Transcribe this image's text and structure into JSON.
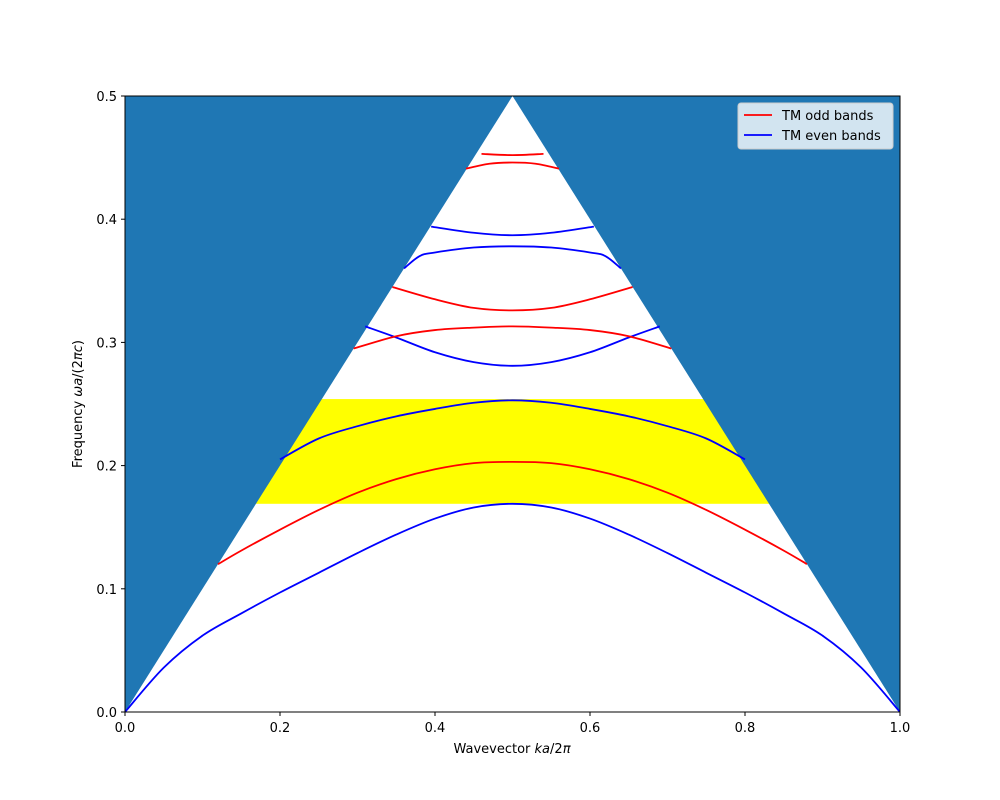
{
  "chart_data": {
    "type": "line",
    "title": "",
    "xlabel": "Wavevector $ka/2\\pi$",
    "ylabel": "Frequency $\\omega a/(2\\pi c)$",
    "xlabel_parts": [
      "Wavevector ",
      "ka",
      "/2",
      "π"
    ],
    "ylabel_parts": [
      "Frequency ",
      "ωa",
      "/(2",
      "πc",
      ")"
    ],
    "xlim": [
      0.0,
      1.0
    ],
    "ylim": [
      0.0,
      0.5
    ],
    "xticks": [
      "0.0",
      "0.2",
      "0.4",
      "0.6",
      "0.8",
      "1.0"
    ],
    "yticks": [
      "0.0",
      "0.1",
      "0.2",
      "0.3",
      "0.4",
      "0.5"
    ],
    "grid": false,
    "legend": {
      "placement": "top-right",
      "entries": [
        {
          "label": "TM odd bands",
          "color": "#ff0000"
        },
        {
          "label": "TM even bands",
          "color": "#0000ff"
        }
      ]
    },
    "colors": {
      "light_cone": "#1f77b4",
      "band_gap": "#ffff00",
      "odd": "#ff0000",
      "even": "#0000ff"
    },
    "light_cone": {
      "apex": [
        0.5,
        0.5
      ],
      "description": "filled region above |k| and |1-k| lines"
    },
    "band_gap": {
      "y_range": [
        0.169,
        0.254
      ]
    },
    "series": [
      {
        "parity": "even",
        "color": "#0000ff",
        "x": [
          0.0,
          0.05,
          0.1,
          0.15,
          0.2,
          0.25,
          0.3,
          0.35,
          0.4,
          0.45,
          0.5,
          0.55,
          0.6,
          0.65,
          0.7,
          0.75,
          0.8,
          0.85,
          0.9,
          0.95,
          1.0
        ],
        "y": [
          0.0,
          0.036,
          0.062,
          0.08,
          0.097,
          0.113,
          0.129,
          0.144,
          0.157,
          0.166,
          0.169,
          0.166,
          0.157,
          0.144,
          0.129,
          0.113,
          0.097,
          0.08,
          0.062,
          0.036,
          0.0
        ]
      },
      {
        "parity": "odd",
        "color": "#ff0000",
        "x": [
          0.12,
          0.15,
          0.2,
          0.25,
          0.3,
          0.35,
          0.4,
          0.45,
          0.5,
          0.55,
          0.6,
          0.65,
          0.7,
          0.75,
          0.8,
          0.85,
          0.88
        ],
        "y": [
          0.12,
          0.131,
          0.148,
          0.164,
          0.178,
          0.189,
          0.197,
          0.202,
          0.203,
          0.202,
          0.197,
          0.189,
          0.178,
          0.164,
          0.148,
          0.131,
          0.12
        ]
      },
      {
        "parity": "even",
        "color": "#0000ff",
        "x": [
          0.2,
          0.25,
          0.3,
          0.35,
          0.4,
          0.45,
          0.5,
          0.55,
          0.6,
          0.65,
          0.7,
          0.75,
          0.8
        ],
        "y": [
          0.205,
          0.222,
          0.232,
          0.24,
          0.246,
          0.251,
          0.253,
          0.251,
          0.246,
          0.24,
          0.232,
          0.222,
          0.205
        ]
      },
      {
        "parity": "even",
        "color": "#0000ff",
        "x": [
          0.31,
          0.35,
          0.4,
          0.45,
          0.5,
          0.55,
          0.6,
          0.65,
          0.69
        ],
        "y": [
          0.313,
          0.304,
          0.292,
          0.284,
          0.281,
          0.284,
          0.292,
          0.304,
          0.313
        ]
      },
      {
        "parity": "odd",
        "color": "#ff0000",
        "x": [
          0.295,
          0.35,
          0.4,
          0.45,
          0.5,
          0.55,
          0.6,
          0.65,
          0.705
        ],
        "y": [
          0.295,
          0.305,
          0.31,
          0.312,
          0.313,
          0.312,
          0.31,
          0.305,
          0.295
        ]
      },
      {
        "parity": "odd",
        "color": "#ff0000",
        "x": [
          0.345,
          0.4,
          0.45,
          0.5,
          0.55,
          0.6,
          0.655
        ],
        "y": [
          0.345,
          0.335,
          0.328,
          0.326,
          0.328,
          0.335,
          0.345
        ]
      },
      {
        "parity": "even",
        "color": "#0000ff",
        "x": [
          0.36,
          0.38,
          0.4,
          0.45,
          0.5,
          0.55,
          0.6,
          0.62,
          0.64
        ],
        "y": [
          0.36,
          0.37,
          0.373,
          0.377,
          0.378,
          0.377,
          0.373,
          0.37,
          0.36
        ]
      },
      {
        "parity": "even",
        "color": "#0000ff",
        "x": [
          0.395,
          0.45,
          0.5,
          0.55,
          0.605
        ],
        "y": [
          0.394,
          0.389,
          0.387,
          0.389,
          0.394
        ]
      },
      {
        "parity": "odd",
        "color": "#ff0000",
        "x": [
          0.44,
          0.47,
          0.5,
          0.53,
          0.56
        ],
        "y": [
          0.441,
          0.445,
          0.446,
          0.445,
          0.441
        ]
      },
      {
        "parity": "odd",
        "color": "#ff0000",
        "x": [
          0.46,
          0.5,
          0.54
        ],
        "y": [
          0.453,
          0.452,
          0.453
        ]
      }
    ]
  }
}
